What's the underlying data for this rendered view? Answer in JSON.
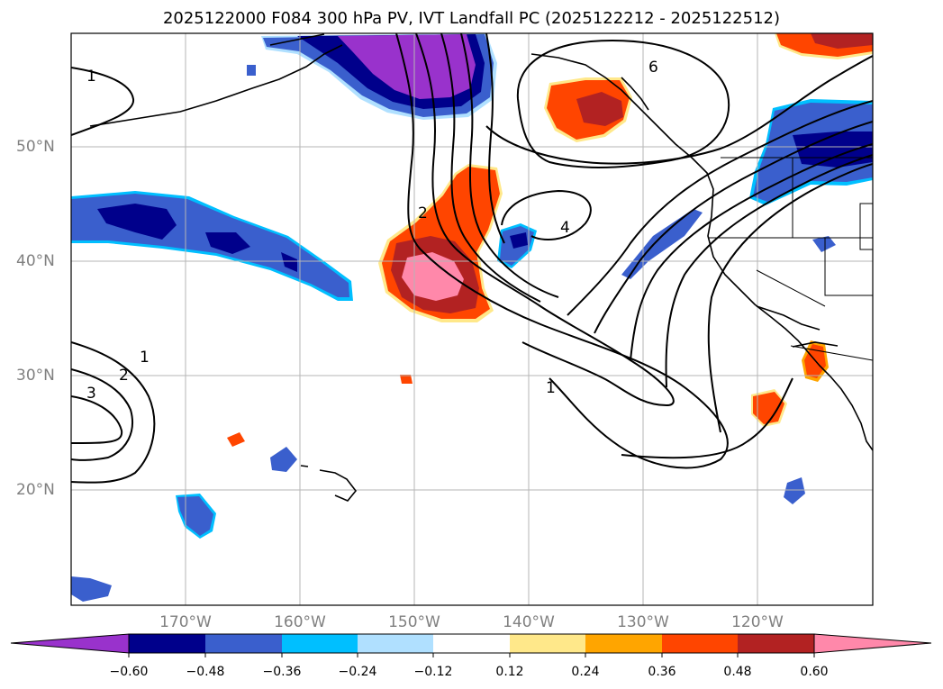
{
  "title": "2025122000 F084 300 hPa PV, IVT Landfall PC (2025122212 - 2025122512)",
  "lat_labels": [
    "50°N",
    "40°N",
    "30°N",
    "20°N"
  ],
  "lon_labels": [
    "170°W",
    "160°W",
    "150°W",
    "140°W",
    "130°W",
    "120°W"
  ],
  "contour_labels": [
    "1",
    "1",
    "2",
    "3",
    "2",
    "4",
    "6",
    "1"
  ],
  "colorbar": {
    "ticks": [
      "−0.60",
      "−0.48",
      "−0.36",
      "−0.24",
      "−0.12",
      "0.12",
      "0.24",
      "0.36",
      "0.48",
      "0.60"
    ],
    "colors": [
      "#9932cc",
      "#00008b",
      "#3a5fcd",
      "#00bfff",
      "#b0e0ff",
      "#ffffff",
      "#ffe88a",
      "#ffa500",
      "#ff4500",
      "#b22222",
      "#ff88aa"
    ]
  }
}
